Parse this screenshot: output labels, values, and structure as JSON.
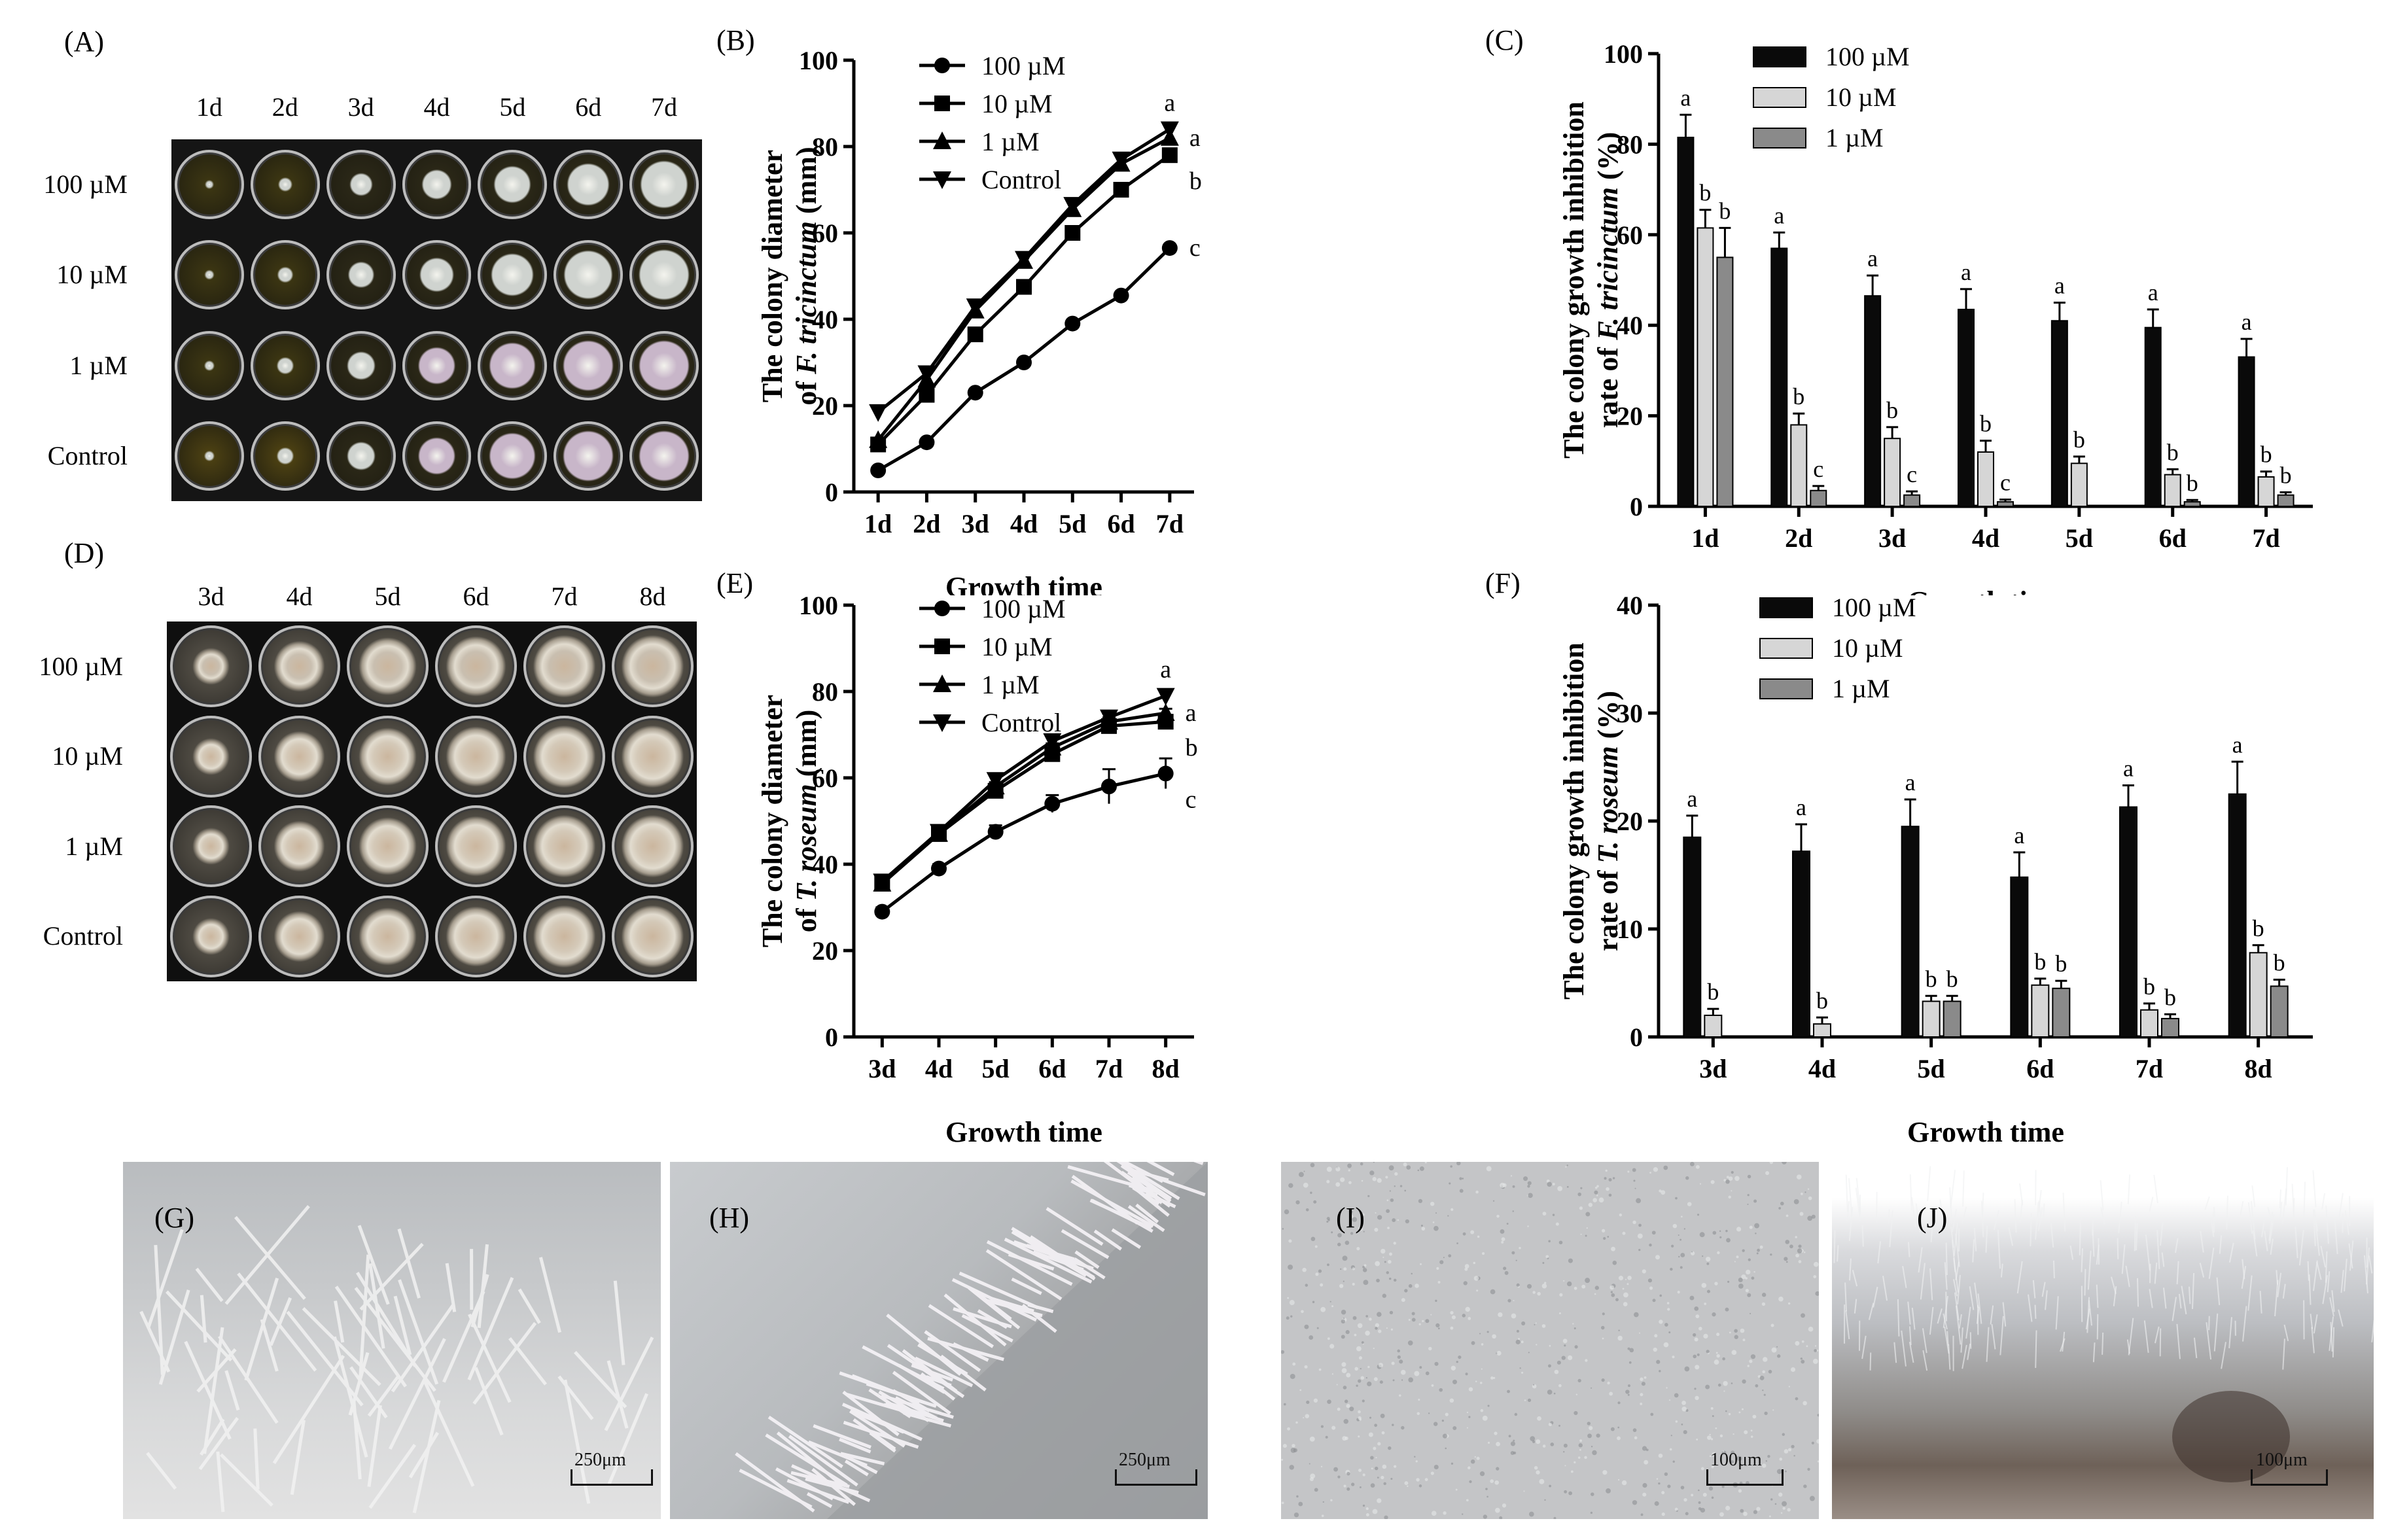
{
  "panels": {
    "A": {
      "label": "(A)",
      "days": [
        "1d",
        "2d",
        "3d",
        "4d",
        "5d",
        "6d",
        "7d"
      ],
      "rows": [
        "100 µM",
        "10 µM",
        "1 µM",
        "Control"
      ]
    },
    "D": {
      "label": "(D)",
      "days": [
        "3d",
        "4d",
        "5d",
        "6d",
        "7d",
        "8d"
      ],
      "rows": [
        "100 µM",
        "10 µM",
        "1 µM",
        "Control"
      ]
    },
    "G": {
      "label": "(G)",
      "scale": "250μm"
    },
    "H": {
      "label": "(H)",
      "scale": "250μm"
    },
    "I": {
      "label": "(I)",
      "scale": "100μm"
    },
    "J": {
      "label": "(J)",
      "scale": "100μm"
    }
  },
  "chart_data": [
    {
      "id": "B",
      "panel_label": "(B)",
      "type": "line",
      "ylabel_line1": "The colony diameter",
      "ylabel_line2_prefix": "of ",
      "ylabel_line2_italic": "F. tricinctum",
      "ylabel_line2_suffix": " (mm)",
      "xlabel": "Growth time",
      "categories": [
        "1d",
        "2d",
        "3d",
        "4d",
        "5d",
        "6d",
        "7d"
      ],
      "ylim": [
        0,
        100
      ],
      "yticks": [
        0,
        20,
        40,
        60,
        80,
        100
      ],
      "legend_position": "top-left",
      "series": [
        {
          "name": "100 µM",
          "marker": "circle",
          "values": [
            5,
            11.5,
            23,
            30,
            39,
            45.5,
            56.5
          ],
          "sig": "c"
        },
        {
          "name": "10 µM",
          "marker": "square",
          "values": [
            11,
            22.5,
            36.5,
            47.5,
            60,
            70,
            78
          ],
          "sig": "b"
        },
        {
          "name": "1 µM",
          "marker": "triangle-up",
          "values": [
            12,
            26,
            42,
            53.5,
            65.5,
            76,
            82
          ],
          "sig": "a"
        },
        {
          "name": "Control",
          "marker": "triangle-down",
          "values": [
            18.5,
            27.5,
            43,
            54,
            66.5,
            77,
            84
          ],
          "sig": "a"
        }
      ]
    },
    {
      "id": "C",
      "panel_label": "(C)",
      "type": "bar",
      "ylabel_line1": "The colony growth inhibition",
      "ylabel_line2_prefix": "rate of ",
      "ylabel_line2_italic": "F. tricinctum",
      "ylabel_line2_suffix": " (%)",
      "xlabel": "Growth time",
      "categories": [
        "1d",
        "2d",
        "3d",
        "4d",
        "5d",
        "6d",
        "7d"
      ],
      "ylim": [
        0,
        100
      ],
      "yticks": [
        0,
        20,
        40,
        60,
        80,
        100
      ],
      "legend_position": "top-right",
      "series": [
        {
          "name": "100 µM",
          "color": "#0a0a0a",
          "values": [
            81.5,
            57,
            46.5,
            43.5,
            41,
            39.5,
            33
          ],
          "errors": [
            5,
            3.5,
            4.5,
            4.5,
            4,
            4,
            4
          ],
          "sig": [
            "a",
            "a",
            "a",
            "a",
            "a",
            "a",
            "a"
          ]
        },
        {
          "name": "10 µM",
          "color": "#d6d6d6",
          "values": [
            61.5,
            18,
            15,
            12,
            9.5,
            7,
            6.5
          ],
          "errors": [
            4,
            2.5,
            2.5,
            2.5,
            1.5,
            1.2,
            1.2
          ],
          "sig": [
            "b",
            "b",
            "b",
            "b",
            "b",
            "b",
            "b"
          ]
        },
        {
          "name": "1 µM",
          "color": "#8a8a8a",
          "values": [
            55,
            3.5,
            2.5,
            1,
            0,
            1,
            2.5
          ],
          "errors": [
            6.5,
            1,
            0.8,
            0.5,
            0,
            0.4,
            0.6
          ],
          "sig": [
            "b",
            "c",
            "c",
            "c",
            "",
            "b",
            "b"
          ]
        }
      ]
    },
    {
      "id": "E",
      "panel_label": "(E)",
      "type": "line",
      "ylabel_line1": "The colony diameter",
      "ylabel_line2_prefix": "of ",
      "ylabel_line2_italic": "T. roseum",
      "ylabel_line2_suffix": " (mm)",
      "xlabel": "Growth time",
      "categories": [
        "3d",
        "4d",
        "5d",
        "6d",
        "7d",
        "8d"
      ],
      "ylim": [
        0,
        100
      ],
      "yticks": [
        0,
        20,
        40,
        60,
        80,
        100
      ],
      "legend_position": "top-left",
      "series": [
        {
          "name": "100 µM",
          "marker": "circle",
          "values": [
            29,
            39,
            47.5,
            54,
            58,
            61
          ],
          "errors": [
            1,
            1,
            1.5,
            2,
            4,
            3.5
          ],
          "sig": "c"
        },
        {
          "name": "10 µM",
          "marker": "square",
          "values": [
            35.5,
            47,
            57,
            65.5,
            72,
            73
          ],
          "errors": [
            1,
            1,
            1,
            1.5,
            1,
            1.5
          ],
          "sig": "b"
        },
        {
          "name": "1 µM",
          "marker": "triangle-up",
          "values": [
            35.5,
            47,
            58,
            67,
            73,
            75
          ],
          "errors": [
            1,
            1,
            1,
            1,
            1,
            1
          ],
          "sig": "a"
        },
        {
          "name": "Control",
          "marker": "triangle-down",
          "values": [
            36,
            47.5,
            59.5,
            68.5,
            74,
            79
          ],
          "errors": [
            1,
            1,
            1,
            1,
            1,
            1
          ],
          "sig": "a"
        }
      ]
    },
    {
      "id": "F",
      "panel_label": "(F)",
      "type": "bar",
      "ylabel_line1": "The colony growth inhibition",
      "ylabel_line2_prefix": "rate of ",
      "ylabel_line2_italic": "T. roseum",
      "ylabel_line2_suffix": " (%)",
      "xlabel": "Growth time",
      "categories": [
        "3d",
        "4d",
        "5d",
        "6d",
        "7d",
        "8d"
      ],
      "ylim": [
        0,
        40
      ],
      "yticks": [
        0,
        10,
        20,
        30,
        40
      ],
      "legend_position": "top",
      "series": [
        {
          "name": "100 µM",
          "color": "#0a0a0a",
          "values": [
            18.5,
            17.2,
            19.5,
            14.8,
            21.3,
            22.5
          ],
          "errors": [
            2,
            2.5,
            2.5,
            2.3,
            2,
            3
          ],
          "sig": [
            "a",
            "a",
            "a",
            "a",
            "a",
            "a"
          ]
        },
        {
          "name": "10 µM",
          "color": "#d6d6d6",
          "values": [
            2,
            1.2,
            3.3,
            4.8,
            2.5,
            7.8
          ],
          "errors": [
            0.6,
            0.6,
            0.5,
            0.6,
            0.6,
            0.7
          ],
          "sig": [
            "b",
            "b",
            "b",
            "b",
            "b",
            "b"
          ]
        },
        {
          "name": "1 µM",
          "color": "#8a8a8a",
          "values": [
            0,
            0,
            3.3,
            4.5,
            1.7,
            4.7
          ],
          "errors": [
            0,
            0,
            0.5,
            0.7,
            0.4,
            0.6
          ],
          "sig": [
            "",
            "",
            "b",
            "b",
            "b",
            "b"
          ]
        }
      ]
    }
  ]
}
